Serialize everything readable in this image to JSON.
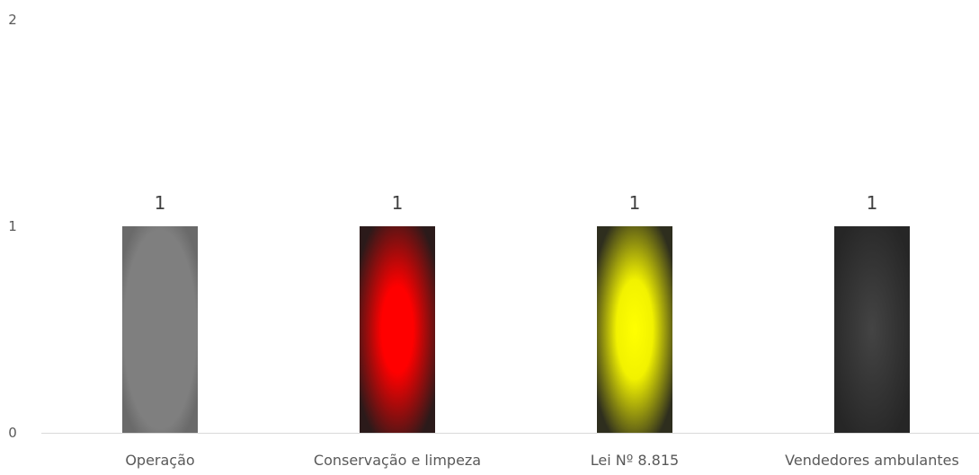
{
  "chart_data": {
    "type": "bar",
    "title": "",
    "xlabel": "",
    "ylabel": "",
    "categories": [
      "Operação",
      "Conservação e limpeza",
      "Lei Nº 8.815",
      "Vendedores ambulantes"
    ],
    "values": [
      1,
      1,
      1,
      1
    ],
    "data_labels": [
      "1",
      "1",
      "1",
      "1"
    ],
    "ylim": [
      0,
      2
    ],
    "yticks": [
      0,
      1,
      2
    ],
    "grid": false,
    "legend": "none",
    "bar_styles": [
      {
        "center": "#7f7f7f",
        "edge": "#6a6a6a",
        "style": "gray-radial"
      },
      {
        "center": "#ff0000",
        "edge": "#2b1a1a",
        "style": "red-radial"
      },
      {
        "center": "#ffff00",
        "edge": "#2e2e1e",
        "style": "yellow-radial"
      },
      {
        "center": "#444444",
        "edge": "#262626",
        "style": "dark-radial"
      }
    ],
    "axis_color": "#d9d9d9"
  }
}
